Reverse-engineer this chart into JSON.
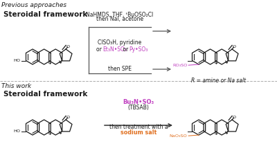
{
  "bg_color": "#ffffff",
  "title_top": "Previous approaches",
  "title_bottom": "This work",
  "label_top_left": "Steroidal framework",
  "label_bottom_left": "Steroidal framework",
  "reagent_top1": "NaHMDS, THF, ᵗBuOSO₂Cl",
  "reagent_top2": "then NaI, acetone",
  "reagent_top3": "ClSO₃H, pyridine",
  "reagent_top5": "then SPE",
  "label_product_top": "RO₃SO",
  "note_top": "R = amine or Na salt",
  "reagent_bottom1": "Bu₃N•SO₃",
  "reagent_bottom2": "(TBSAB)",
  "reagent_bottom3": "then treatment with a",
  "reagent_bottom4": "sodium salt",
  "label_product_bottom": "NaO₃SO",
  "color_magenta": "#c040c0",
  "color_orange": "#e07020",
  "color_black": "#1a1a1a",
  "color_gray": "#999999",
  "color_dark": "#333333"
}
